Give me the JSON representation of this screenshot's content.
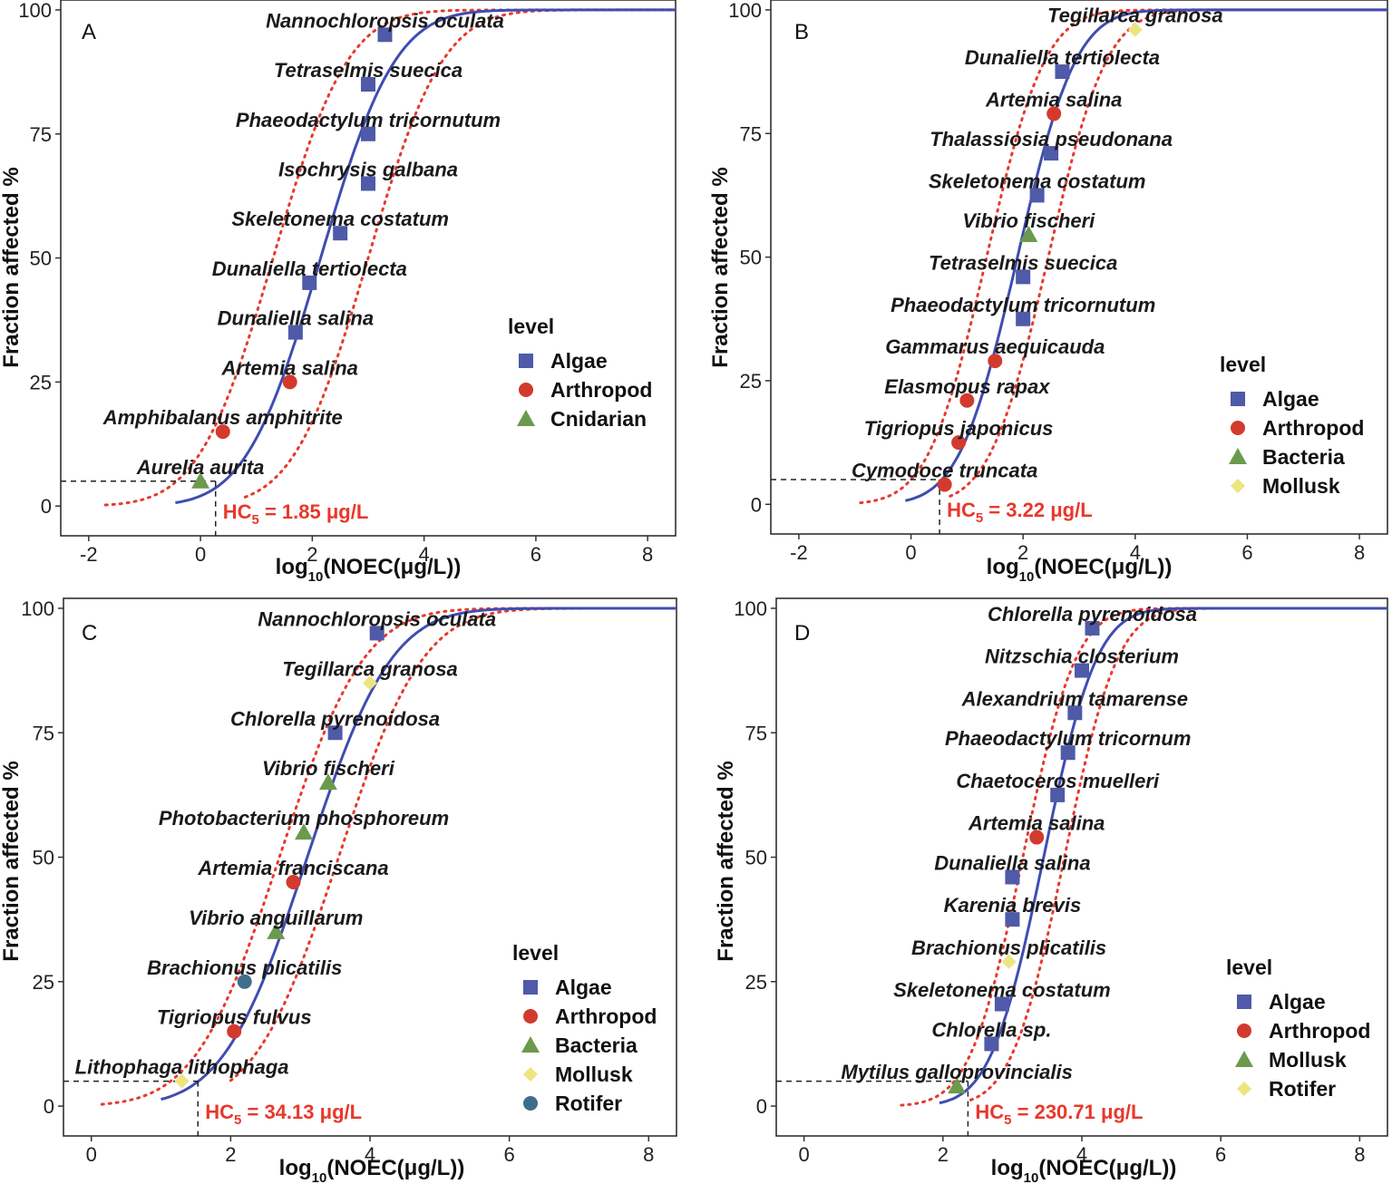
{
  "figure": {
    "ylabel": "Fraction affected %",
    "xlabel_base": "log",
    "xlabel_sub": "10",
    "xlabel_rest": "(NOEC(μg/L))",
    "legend_title": "level",
    "hc_label_base": "HC",
    "hc_label_sub": "5"
  },
  "colors": {
    "Algae": "#4f5aa8",
    "Arthropod": "#d23a2e",
    "Cnidarian": "#6b9a4d",
    "Bacteria": "#6b9a4d",
    "Mollusk_yellow": "#ede57f",
    "Mollusk_green": "#6b9a4d",
    "Rotifer_yellow": "#ede57f",
    "Rotifer_blue": "#3f6e8c",
    "fit_line": "#3f4db0",
    "ci_line": "#e8382c",
    "hc_text": "#e8382c"
  },
  "chart_data": [
    {
      "type": "scatter",
      "panel": "A",
      "xlim": [
        -2.5,
        8.5
      ],
      "ylim": [
        -6,
        102
      ],
      "xticks": [
        "-2",
        "0",
        "2",
        "4",
        "6",
        "8"
      ],
      "yticks": [
        "0",
        "25",
        "50",
        "75",
        "100"
      ],
      "fit": {
        "mu": 2.15,
        "sigma": 1.05,
        "x_start": -0.45,
        "x_end": 8.5
      },
      "ci_lo": {
        "mu": 1.3,
        "sigma": 1.05,
        "x_start": -1.7,
        "x_end": 8.5
      },
      "ci_hi": {
        "mu": 3.0,
        "sigma": 1.05,
        "x_start": 0.8,
        "x_end": 8.5
      },
      "hc5_x": 0.27,
      "hc5_text": "= 1.85 μg/L",
      "legend": [
        {
          "name": "Algae",
          "shape": "square",
          "color": "#4f5aa8"
        },
        {
          "name": "Arthropod",
          "shape": "circle",
          "color": "#d23a2e"
        },
        {
          "name": "Cnidarian",
          "shape": "triangle",
          "color": "#6b9a4d"
        }
      ],
      "points": [
        {
          "label": "Nannochloropsis oculata",
          "x": 3.3,
          "y": 95,
          "shape": "square",
          "color": "#4f5aa8"
        },
        {
          "label": "Tetraselmis suecica",
          "x": 3.0,
          "y": 85,
          "shape": "square",
          "color": "#4f5aa8"
        },
        {
          "label": "Phaeodactylum tricornutum",
          "x": 3.0,
          "y": 75,
          "shape": "square",
          "color": "#4f5aa8"
        },
        {
          "label": "Isochrysis galbana",
          "x": 3.0,
          "y": 65,
          "shape": "square",
          "color": "#4f5aa8"
        },
        {
          "label": "Skeletonema costatum",
          "x": 2.5,
          "y": 55,
          "shape": "square",
          "color": "#4f5aa8"
        },
        {
          "label": "Dunaliella tertiolecta",
          "x": 1.95,
          "y": 45,
          "shape": "square",
          "color": "#4f5aa8"
        },
        {
          "label": "Dunaliella salina",
          "x": 1.7,
          "y": 35,
          "shape": "square",
          "color": "#4f5aa8"
        },
        {
          "label": "Artemia salina",
          "x": 1.6,
          "y": 25,
          "shape": "circle",
          "color": "#d23a2e"
        },
        {
          "label": "Amphibalanus amphitrite",
          "x": 0.4,
          "y": 15,
          "shape": "circle",
          "color": "#d23a2e"
        },
        {
          "label": "Aurelia aurita",
          "x": 0.0,
          "y": 5,
          "shape": "triangle",
          "color": "#6b9a4d"
        }
      ]
    },
    {
      "type": "scatter",
      "panel": "B",
      "xlim": [
        -2.5,
        8.5
      ],
      "ylim": [
        -6,
        102
      ],
      "xticks": [
        "-2",
        "0",
        "2",
        "4",
        "6",
        "8"
      ],
      "yticks": [
        "0",
        "25",
        "50",
        "75",
        "100"
      ],
      "fit": {
        "mu": 1.9,
        "sigma": 0.82,
        "x_start": -0.1,
        "x_end": 8.5
      },
      "ci_lo": {
        "mu": 1.35,
        "sigma": 0.82,
        "x_start": -0.9,
        "x_end": 8.5
      },
      "ci_hi": {
        "mu": 2.45,
        "sigma": 0.82,
        "x_start": 0.7,
        "x_end": 8.5
      },
      "hc5_x": 0.51,
      "hc5_text": "= 3.22 μg/L",
      "legend": [
        {
          "name": "Algae",
          "shape": "square",
          "color": "#4f5aa8"
        },
        {
          "name": "Arthropod",
          "shape": "circle",
          "color": "#d23a2e"
        },
        {
          "name": "Bacteria",
          "shape": "triangle",
          "color": "#6b9a4d"
        },
        {
          "name": "Mollusk",
          "shape": "diamond",
          "color": "#ede57f"
        }
      ],
      "points": [
        {
          "label": "Tegillarca granosa",
          "x": 4.0,
          "y": 96,
          "shape": "diamond",
          "color": "#ede57f"
        },
        {
          "label": "Dunaliella tertiolecta",
          "x": 2.7,
          "y": 87.5,
          "shape": "square",
          "color": "#4f5aa8"
        },
        {
          "label": "Artemia salina",
          "x": 2.55,
          "y": 79,
          "shape": "circle",
          "color": "#d23a2e"
        },
        {
          "label": "Thalassiosia pseudonana",
          "x": 2.5,
          "y": 71,
          "shape": "square",
          "color": "#4f5aa8"
        },
        {
          "label": "Skeletonema costatum",
          "x": 2.25,
          "y": 62.5,
          "shape": "square",
          "color": "#4f5aa8"
        },
        {
          "label": "Vibrio fischeri",
          "x": 2.1,
          "y": 54.5,
          "shape": "triangle",
          "color": "#6b9a4d"
        },
        {
          "label": "Tetraselmis suecica",
          "x": 2.0,
          "y": 46,
          "shape": "square",
          "color": "#4f5aa8"
        },
        {
          "label": "Phaeodactylum tricornutum",
          "x": 2.0,
          "y": 37.5,
          "shape": "square",
          "color": "#4f5aa8"
        },
        {
          "label": "Gammarus aequicauda",
          "x": 1.5,
          "y": 29,
          "shape": "circle",
          "color": "#d23a2e"
        },
        {
          "label": "Elasmopus rapax",
          "x": 1.0,
          "y": 21,
          "shape": "circle",
          "color": "#d23a2e"
        },
        {
          "label": "Tigriopus japonicus",
          "x": 0.85,
          "y": 12.5,
          "shape": "circle",
          "color": "#d23a2e"
        },
        {
          "label": "Cymodoce truncata",
          "x": 0.6,
          "y": 4,
          "shape": "circle",
          "color": "#d23a2e"
        }
      ]
    },
    {
      "type": "scatter",
      "panel": "C",
      "xlim": [
        -0.4,
        8.4
      ],
      "ylim": [
        -6,
        102
      ],
      "xticks": [
        "0",
        "2",
        "4",
        "6",
        "8"
      ],
      "yticks": [
        "0",
        "25",
        "50",
        "75",
        "100"
      ],
      "fit": {
        "mu": 3.1,
        "sigma": 0.95,
        "x_start": 1.0,
        "x_end": 8.4
      },
      "ci_lo": {
        "mu": 2.7,
        "sigma": 0.95,
        "x_start": 0.15,
        "x_end": 8.4
      },
      "ci_hi": {
        "mu": 3.55,
        "sigma": 0.95,
        "x_start": 2.0,
        "x_end": 8.4
      },
      "hc5_x": 1.53,
      "hc5_text": "= 34.13 μg/L",
      "legend": [
        {
          "name": "Algae",
          "shape": "square",
          "color": "#4f5aa8"
        },
        {
          "name": "Arthropod",
          "shape": "circle",
          "color": "#d23a2e"
        },
        {
          "name": "Bacteria",
          "shape": "triangle",
          "color": "#6b9a4d"
        },
        {
          "name": "Mollusk",
          "shape": "diamond",
          "color": "#ede57f"
        },
        {
          "name": "Rotifer",
          "shape": "circle",
          "color": "#3f6e8c"
        }
      ],
      "points": [
        {
          "label": "Nannochloropsis oculata",
          "x": 4.1,
          "y": 95,
          "shape": "square",
          "color": "#4f5aa8"
        },
        {
          "label": "Tegillarca granosa",
          "x": 4.0,
          "y": 85,
          "shape": "diamond",
          "color": "#ede57f"
        },
        {
          "label": "Chlorella pyrenoidosa",
          "x": 3.5,
          "y": 75,
          "shape": "square",
          "color": "#4f5aa8"
        },
        {
          "label": "Vibrio fischeri",
          "x": 3.4,
          "y": 65,
          "shape": "triangle",
          "color": "#6b9a4d"
        },
        {
          "label": "Photobacterium phosphoreum",
          "x": 3.05,
          "y": 55,
          "shape": "triangle",
          "color": "#6b9a4d"
        },
        {
          "label": "Artemia franciscana",
          "x": 2.9,
          "y": 45,
          "shape": "circle",
          "color": "#d23a2e"
        },
        {
          "label": "Vibrio anguillarum",
          "x": 2.65,
          "y": 35,
          "shape": "triangle",
          "color": "#6b9a4d"
        },
        {
          "label": "Brachionus plicatilis",
          "x": 2.2,
          "y": 25,
          "shape": "circle",
          "color": "#3f6e8c"
        },
        {
          "label": "Tigriopus fulvus",
          "x": 2.05,
          "y": 15,
          "shape": "circle",
          "color": "#d23a2e"
        },
        {
          "label": "Lithophaga lithophaga",
          "x": 1.3,
          "y": 5,
          "shape": "diamond",
          "color": "#ede57f"
        }
      ]
    },
    {
      "type": "scatter",
      "panel": "D",
      "xlim": [
        -0.4,
        8.4
      ],
      "ylim": [
        -6,
        102
      ],
      "xticks": [
        "0",
        "2",
        "4",
        "6",
        "8"
      ],
      "yticks": [
        "0",
        "25",
        "50",
        "75",
        "100"
      ],
      "fit": {
        "mu": 3.45,
        "sigma": 0.6,
        "x_start": 1.95,
        "x_end": 8.4
      },
      "ci_lo": {
        "mu": 3.15,
        "sigma": 0.6,
        "x_start": 1.4,
        "x_end": 8.4
      },
      "ci_hi": {
        "mu": 3.75,
        "sigma": 0.6,
        "x_start": 2.4,
        "x_end": 8.4
      },
      "hc5_x": 2.36,
      "hc5_text": "= 230.71 μg/L",
      "legend": [
        {
          "name": "Algae",
          "shape": "square",
          "color": "#4f5aa8"
        },
        {
          "name": "Arthropod",
          "shape": "circle",
          "color": "#d23a2e"
        },
        {
          "name": "Mollusk",
          "shape": "triangle",
          "color": "#6b9a4d"
        },
        {
          "name": "Rotifer",
          "shape": "diamond",
          "color": "#ede57f"
        }
      ],
      "points": [
        {
          "label": "Chlorella pyrenoidosa",
          "x": 4.15,
          "y": 96,
          "shape": "square",
          "color": "#4f5aa8"
        },
        {
          "label": "Nitzschia closterium",
          "x": 4.0,
          "y": 87.5,
          "shape": "square",
          "color": "#4f5aa8"
        },
        {
          "label": "Alexandrium tamarense",
          "x": 3.9,
          "y": 79,
          "shape": "square",
          "color": "#4f5aa8"
        },
        {
          "label": "Phaeodactylum tricornum",
          "x": 3.8,
          "y": 71,
          "shape": "square",
          "color": "#4f5aa8"
        },
        {
          "label": "Chaetoceros muelleri",
          "x": 3.65,
          "y": 62.5,
          "shape": "square",
          "color": "#4f5aa8"
        },
        {
          "label": "Artemia salina",
          "x": 3.35,
          "y": 54,
          "shape": "circle",
          "color": "#d23a2e"
        },
        {
          "label": "Dunaliella salina",
          "x": 3.0,
          "y": 46,
          "shape": "square",
          "color": "#4f5aa8"
        },
        {
          "label": "Karenia brevis",
          "x": 3.0,
          "y": 37.5,
          "shape": "square",
          "color": "#4f5aa8"
        },
        {
          "label": "Brachionus plicatilis",
          "x": 2.95,
          "y": 29,
          "shape": "diamond",
          "color": "#ede57f"
        },
        {
          "label": "Skeletonema costatum",
          "x": 2.85,
          "y": 20.5,
          "shape": "square",
          "color": "#4f5aa8"
        },
        {
          "label": "Chlorella sp.",
          "x": 2.7,
          "y": 12.5,
          "shape": "square",
          "color": "#4f5aa8"
        },
        {
          "label": "Mytilus galloprovincialis",
          "x": 2.2,
          "y": 4,
          "shape": "triangle",
          "color": "#6b9a4d"
        }
      ]
    }
  ]
}
